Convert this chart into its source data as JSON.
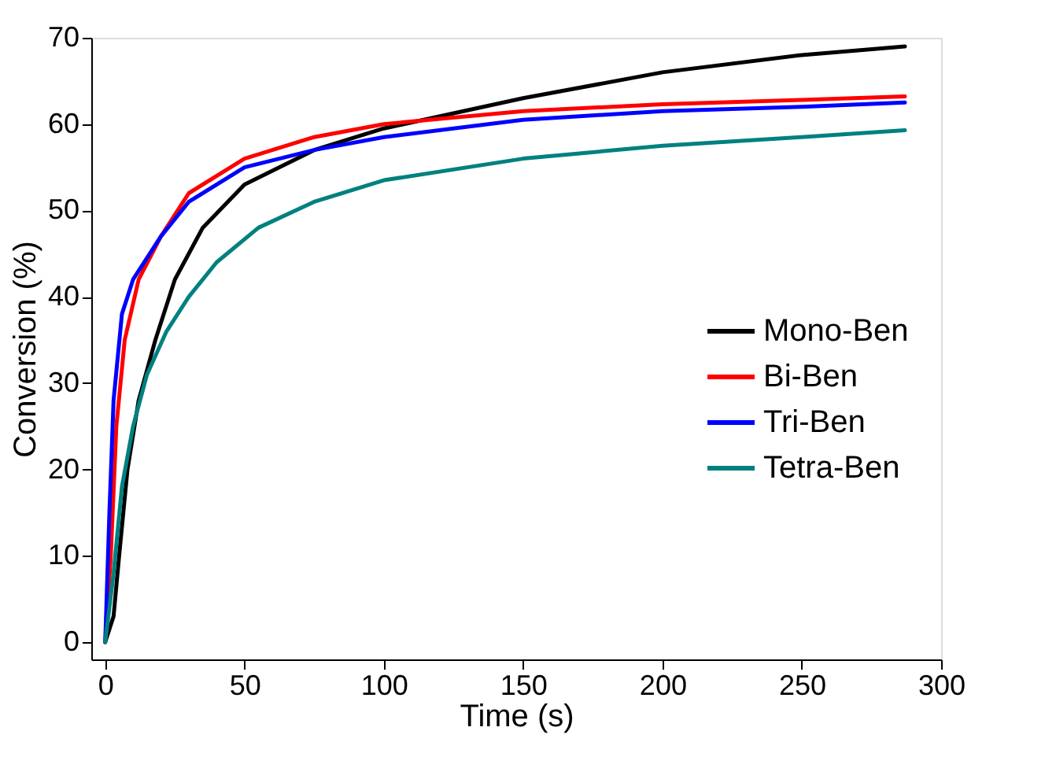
{
  "chart_data": {
    "type": "line",
    "xlabel": "Time (s)",
    "ylabel": "Conversion (%)",
    "xlim": [
      -5,
      300
    ],
    "ylim": [
      -2,
      70
    ],
    "xticks": [
      0,
      50,
      100,
      150,
      200,
      250,
      300
    ],
    "yticks": [
      0,
      10,
      20,
      30,
      40,
      50,
      60,
      70
    ],
    "grid": false,
    "legend": "right",
    "marker": "none",
    "line_style": "solid",
    "series": [
      {
        "name": "Mono-Ben",
        "color": "#000000",
        "x": [
          0,
          3,
          5,
          8,
          12,
          18,
          25,
          35,
          50,
          75,
          100,
          150,
          200,
          250,
          287
        ],
        "values": [
          0,
          3,
          10,
          20,
          28,
          35,
          42,
          48,
          53,
          57,
          59.5,
          63,
          66,
          68,
          69
        ]
      },
      {
        "name": "Bi-Ben",
        "color": "#ff0000",
        "x": [
          0,
          2,
          4,
          7,
          12,
          20,
          30,
          50,
          75,
          100,
          150,
          200,
          250,
          287
        ],
        "values": [
          0,
          10,
          25,
          35,
          42,
          47,
          52,
          56,
          58.5,
          60,
          61.5,
          62.3,
          62.8,
          63.2
        ]
      },
      {
        "name": "Tri-Ben",
        "color": "#0000ff",
        "x": [
          0,
          1.5,
          3,
          6,
          10,
          20,
          30,
          50,
          75,
          100,
          150,
          200,
          250,
          287
        ],
        "values": [
          0,
          15,
          28,
          38,
          42,
          47,
          51,
          55,
          57,
          58.5,
          60.5,
          61.5,
          62,
          62.5
        ]
      },
      {
        "name": "Tetra-Ben",
        "color": "#008080",
        "x": [
          0,
          3,
          6,
          10,
          15,
          22,
          30,
          40,
          55,
          75,
          100,
          150,
          200,
          250,
          287
        ],
        "values": [
          0,
          8,
          18,
          25,
          31,
          36,
          40,
          44,
          48,
          51,
          53.5,
          56,
          57.5,
          58.5,
          59.3
        ]
      }
    ]
  }
}
